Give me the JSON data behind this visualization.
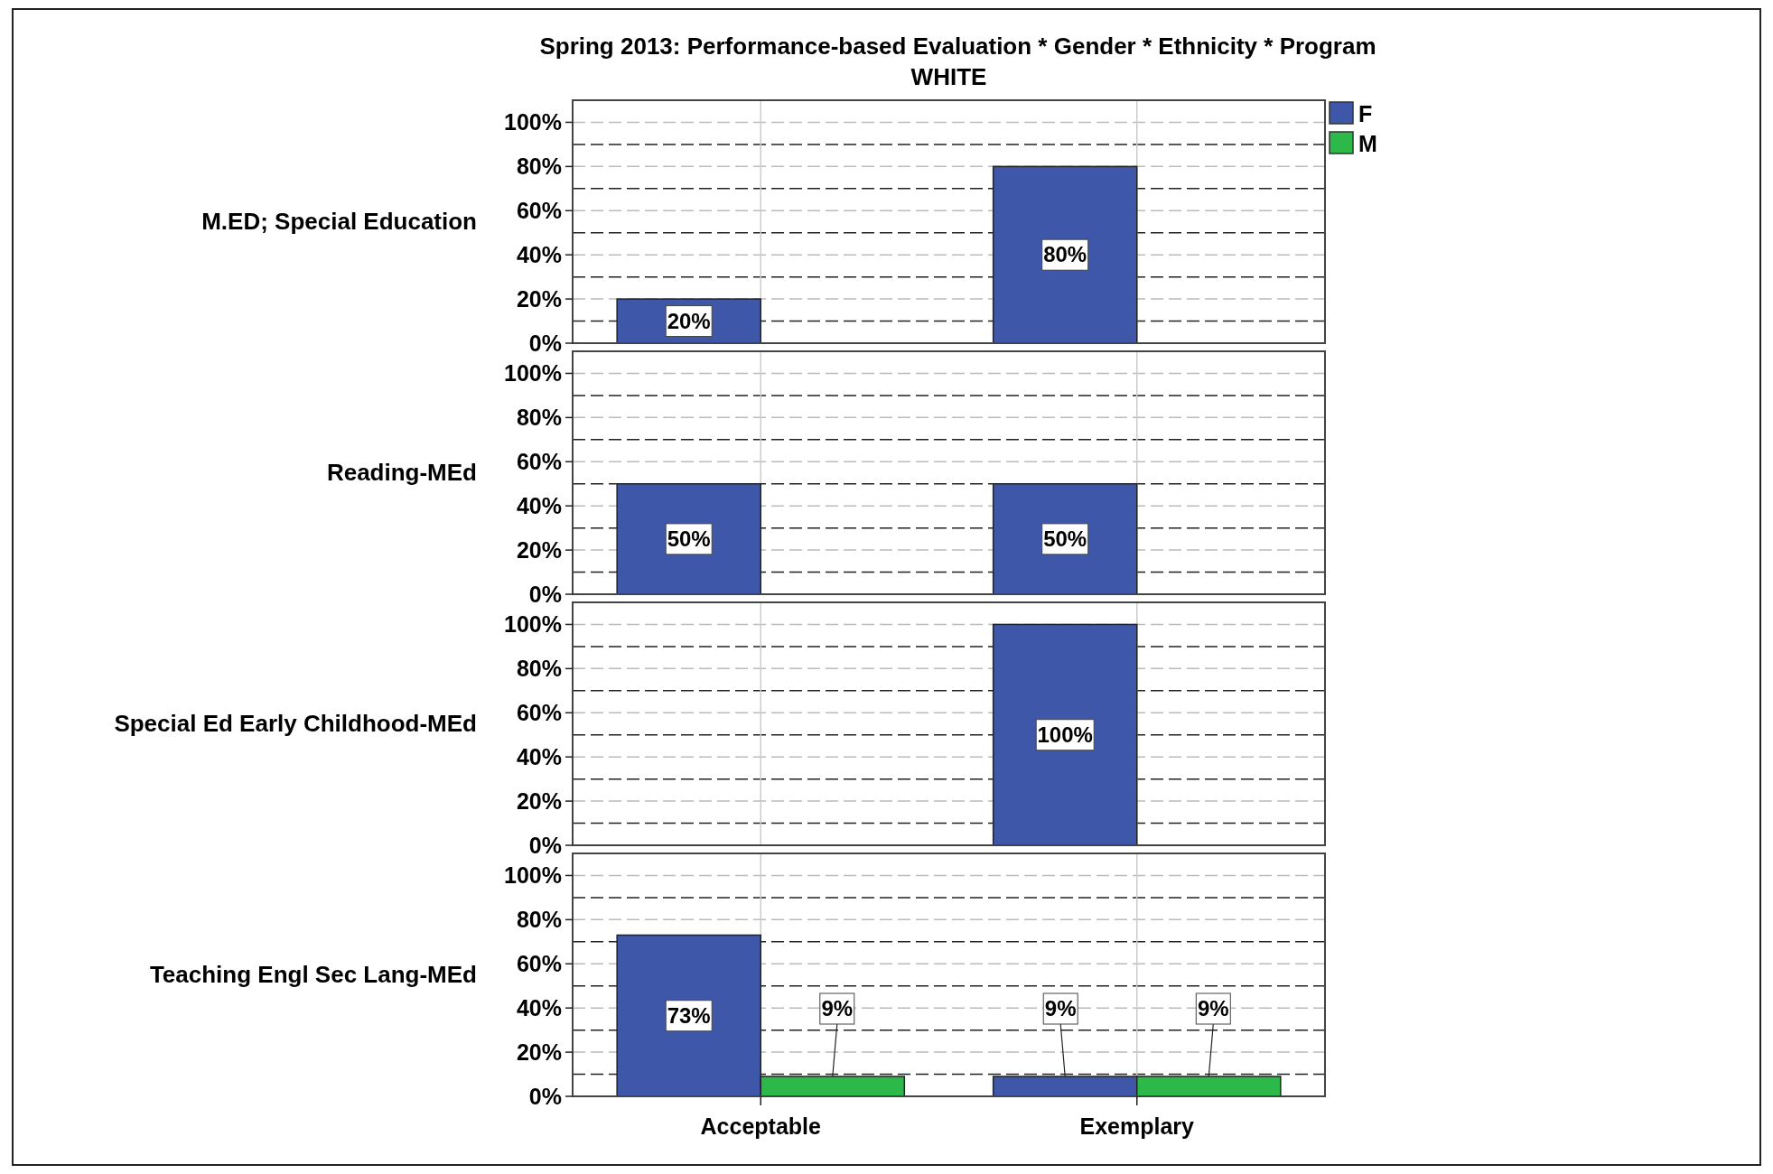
{
  "chart_data": [
    {
      "type": "bar",
      "title": "Spring 2013: Performance-based Evaluation * Gender * Ethnicity * Program",
      "subtitle": "WHITE",
      "ylabel": "M.ED; Special Education",
      "categories": [
        null,
        null
      ],
      "series": [
        {
          "name": "F",
          "color": "#3f57a8",
          "values": [
            20,
            80
          ],
          "value_labels": [
            "20%",
            "80%"
          ]
        },
        {
          "name": "M",
          "color": "#2db84a",
          "values": [
            null,
            null
          ],
          "value_labels": [
            null,
            null
          ]
        }
      ],
      "ylim": [
        0,
        110
      ],
      "yticks": [
        {
          "value": 0,
          "label": "0%"
        },
        {
          "value": 20,
          "label": "20%"
        },
        {
          "value": 40,
          "label": "40%"
        },
        {
          "value": 60,
          "label": "60%"
        },
        {
          "value": 80,
          "label": "80%"
        },
        {
          "value": 100,
          "label": "100%"
        }
      ],
      "grid": true,
      "legend": "top right",
      "tick_labels": "y"
    },
    {
      "type": "bar",
      "ylabel": "Reading-MEd",
      "categories": [
        null,
        null
      ],
      "series": [
        {
          "color": "#3f57a8",
          "values": [
            50,
            50
          ],
          "value_labels": [
            "50%",
            "50%"
          ]
        }
      ],
      "ylim": [
        0,
        110
      ],
      "yticks": [
        {
          "value": 0,
          "label": "0%"
        },
        {
          "value": 20,
          "label": "20%"
        },
        {
          "value": 40,
          "label": "40%"
        },
        {
          "value": 60,
          "label": "60%"
        },
        {
          "value": 80,
          "label": "80%"
        },
        {
          "value": 100,
          "label": "100%"
        }
      ],
      "grid": true,
      "tick_labels": "y"
    },
    {
      "type": "bar",
      "ylabel": "Special Ed Early Childhood-MEd",
      "categories": [
        null,
        null
      ],
      "series": [
        {
          "color": "#3f57a8",
          "values": [
            null,
            100
          ],
          "value_labels": [
            null,
            "100%"
          ]
        }
      ],
      "ylim": [
        0,
        110
      ],
      "yticks": [
        {
          "value": 0,
          "label": "0%"
        },
        {
          "value": 20,
          "label": "20%"
        },
        {
          "value": 40,
          "label": "40%"
        },
        {
          "value": 60,
          "label": "60%"
        },
        {
          "value": 80,
          "label": "80%"
        },
        {
          "value": 100,
          "label": "100%"
        }
      ],
      "grid": true,
      "tick_labels": "y"
    },
    {
      "type": "bar",
      "ylabel": "Teaching Engl Sec Lang-MEd",
      "categories": [
        "Acceptable",
        "Exemplary"
      ],
      "series": [
        {
          "color": "#3f57a8",
          "values": [
            73,
            9
          ],
          "value_labels": [
            "73%",
            "9%"
          ]
        },
        {
          "color": "#2db84a",
          "values": [
            9,
            9
          ],
          "value_labels": [
            "9%",
            "9%"
          ]
        }
      ],
      "ylim": [
        0,
        110
      ],
      "yticks": [
        {
          "value": 0,
          "label": "0%"
        },
        {
          "value": 20,
          "label": "20%"
        },
        {
          "value": 40,
          "label": "40%"
        },
        {
          "value": 60,
          "label": "60%"
        },
        {
          "value": 80,
          "label": "80%"
        },
        {
          "value": 100,
          "label": "100%"
        }
      ],
      "grid": true
    }
  ]
}
